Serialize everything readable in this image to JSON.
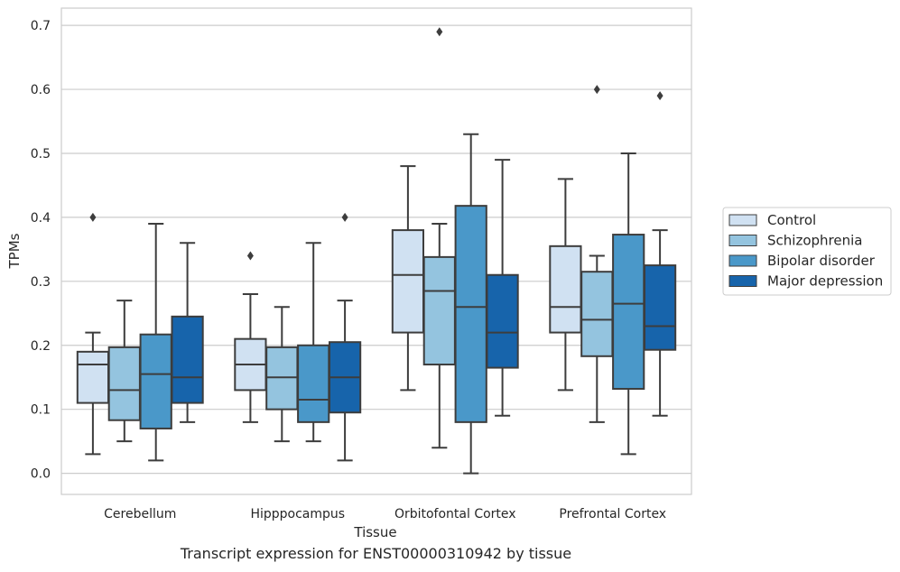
{
  "caption": "Transcript expression for ENST00000310942 by tissue",
  "chart_data": {
    "type": "box",
    "xlabel": "Tissue",
    "ylabel": "TPMs",
    "ylim": [
      -0.033,
      0.727
    ],
    "yticks": [
      0.0,
      0.1,
      0.2,
      0.3,
      0.4,
      0.5,
      0.6,
      0.7
    ],
    "ytick_labels": [
      "0.0",
      "0.1",
      "0.2",
      "0.3",
      "0.4",
      "0.5",
      "0.6",
      "0.7"
    ],
    "grid": "horizontal",
    "legend_position": "right",
    "categories": [
      "Cerebellum",
      "Hipppocampus",
      "Orbitofontal Cortex",
      "Prefrontal Cortex"
    ],
    "series": [
      {
        "name": "Control",
        "color": "#d0e1f2",
        "boxes": [
          {
            "whislo": 0.03,
            "q1": 0.11,
            "med": 0.17,
            "q3": 0.19,
            "whishi": 0.22,
            "fliers": [
              0.4
            ]
          },
          {
            "whislo": 0.08,
            "q1": 0.13,
            "med": 0.17,
            "q3": 0.21,
            "whishi": 0.28,
            "fliers": [
              0.34
            ]
          },
          {
            "whislo": 0.13,
            "q1": 0.22,
            "med": 0.31,
            "q3": 0.38,
            "whishi": 0.48,
            "fliers": []
          },
          {
            "whislo": 0.13,
            "q1": 0.22,
            "med": 0.26,
            "q3": 0.355,
            "whishi": 0.46,
            "fliers": []
          }
        ]
      },
      {
        "name": "Schizophrenia",
        "color": "#94c4df",
        "boxes": [
          {
            "whislo": 0.05,
            "q1": 0.083,
            "med": 0.13,
            "q3": 0.197,
            "whishi": 0.27,
            "fliers": []
          },
          {
            "whislo": 0.05,
            "q1": 0.1,
            "med": 0.15,
            "q3": 0.197,
            "whishi": 0.26,
            "fliers": []
          },
          {
            "whislo": 0.04,
            "q1": 0.17,
            "med": 0.285,
            "q3": 0.338,
            "whishi": 0.39,
            "fliers": [
              0.69
            ]
          },
          {
            "whislo": 0.08,
            "q1": 0.183,
            "med": 0.24,
            "q3": 0.315,
            "whishi": 0.34,
            "fliers": [
              0.6
            ]
          }
        ]
      },
      {
        "name": "Bipolar disorder",
        "color": "#4a98c9",
        "boxes": [
          {
            "whislo": 0.02,
            "q1": 0.07,
            "med": 0.155,
            "q3": 0.217,
            "whishi": 0.39,
            "fliers": []
          },
          {
            "whislo": 0.05,
            "q1": 0.08,
            "med": 0.115,
            "q3": 0.2,
            "whishi": 0.36,
            "fliers": []
          },
          {
            "whislo": 0.0,
            "q1": 0.08,
            "med": 0.26,
            "q3": 0.418,
            "whishi": 0.53,
            "fliers": []
          },
          {
            "whislo": 0.03,
            "q1": 0.132,
            "med": 0.265,
            "q3": 0.373,
            "whishi": 0.5,
            "fliers": []
          }
        ]
      },
      {
        "name": "Major depression",
        "color": "#1764ab",
        "boxes": [
          {
            "whislo": 0.08,
            "q1": 0.11,
            "med": 0.15,
            "q3": 0.245,
            "whishi": 0.36,
            "fliers": []
          },
          {
            "whislo": 0.02,
            "q1": 0.095,
            "med": 0.15,
            "q3": 0.205,
            "whishi": 0.27,
            "fliers": [
              0.4
            ]
          },
          {
            "whislo": 0.09,
            "q1": 0.165,
            "med": 0.22,
            "q3": 0.31,
            "whishi": 0.49,
            "fliers": []
          },
          {
            "whislo": 0.09,
            "q1": 0.193,
            "med": 0.23,
            "q3": 0.325,
            "whishi": 0.38,
            "fliers": [
              0.59
            ]
          }
        ]
      }
    ]
  }
}
